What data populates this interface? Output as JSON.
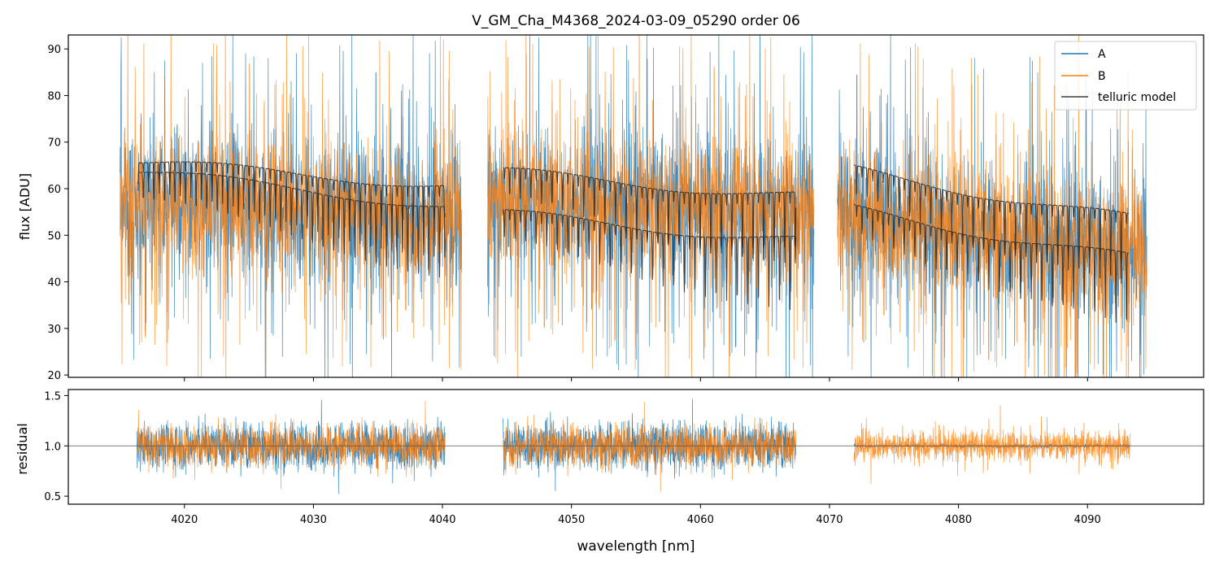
{
  "chart_data": [
    {
      "type": "line",
      "panel": "top",
      "title": "V_GM_Cha_M4368_2024-03-09_05290  order 06",
      "xlabel": "",
      "ylabel": "flux [ADU]",
      "xlim": [
        4011,
        4099
      ],
      "ylim": [
        19.5,
        93
      ],
      "yticks": [
        20,
        30,
        40,
        50,
        60,
        70,
        80,
        90
      ],
      "xticks": [
        4020,
        4030,
        4040,
        4050,
        4060,
        4070,
        4080,
        4090
      ],
      "legend": {
        "placement": "top-right",
        "entries": [
          "A",
          "B",
          "telluric model"
        ]
      },
      "segments": [
        {
          "x": [
            4015.0,
            4041.5
          ],
          "model_x": [
            4016.4,
            4040.2
          ],
          "model_upper": [
            65.5,
            61.0
          ],
          "model_lower": [
            63.5,
            56.5
          ],
          "data_center": [
            58,
            54
          ]
        },
        {
          "x": [
            4043.5,
            4068.8
          ],
          "model_x": [
            4044.7,
            4067.4
          ],
          "model_upper": [
            63.5,
            58.5
          ],
          "model_lower": [
            54.5,
            49.0
          ],
          "data_center": [
            58,
            55
          ]
        },
        {
          "x": [
            4070.6,
            4094.6
          ],
          "model_x": [
            4071.9,
            4093.2
          ],
          "model_upper": [
            64.0,
            53.5
          ],
          "model_lower": [
            55.5,
            45.0
          ],
          "data_center": [
            55,
            46
          ]
        }
      ],
      "series": [
        {
          "name": "A",
          "color": "#1f77b4"
        },
        {
          "name": "B",
          "color": "#ff7f0e"
        },
        {
          "name": "telluric model",
          "color": "#3d3d3d"
        }
      ]
    },
    {
      "type": "line",
      "panel": "bottom",
      "xlabel": "wavelength [nm]",
      "ylabel": "residual",
      "xlim": [
        4011,
        4099
      ],
      "ylim": [
        0.42,
        1.56
      ],
      "yticks": [
        0.5,
        1.0,
        1.5
      ],
      "ytick_labels": [
        "0.5",
        "1.0",
        "1.5"
      ],
      "xticks": [
        4020,
        4030,
        4040,
        4050,
        4060,
        4070,
        4080,
        4090
      ],
      "reference_line": 1.0,
      "segments": [
        {
          "x": [
            4016.3,
            4040.2
          ],
          "spread": 0.28
        },
        {
          "x": [
            4044.7,
            4067.4
          ],
          "spread": 0.28
        },
        {
          "x": [
            4071.9,
            4093.3
          ],
          "spread": 0.2
        }
      ],
      "series": [
        {
          "name": "A",
          "color": "#1f77b4"
        },
        {
          "name": "B",
          "color": "#ff7f0e"
        }
      ]
    }
  ]
}
